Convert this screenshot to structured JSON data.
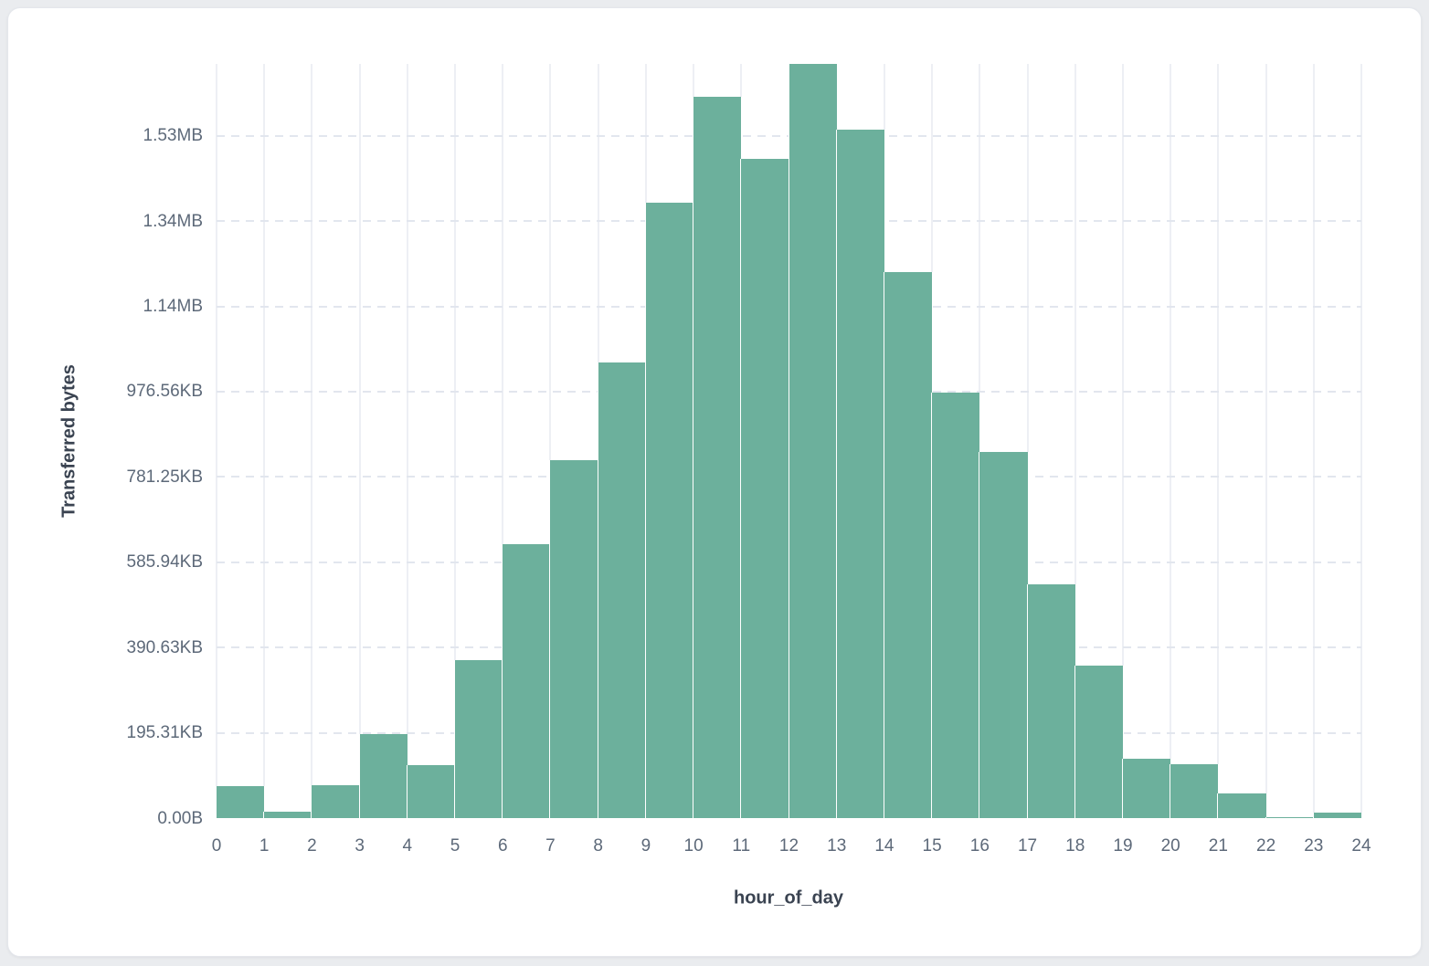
{
  "chart_data": {
    "type": "bar",
    "title": "",
    "xlabel": "hour_of_day",
    "ylabel": "Transferred bytes",
    "hours": [
      0,
      1,
      2,
      3,
      4,
      5,
      6,
      7,
      8,
      9,
      10,
      11,
      12,
      13,
      14,
      15,
      16,
      17,
      18,
      19,
      20,
      21,
      22,
      23
    ],
    "values": [
      74000,
      15000,
      78000,
      196000,
      125000,
      370000,
      642000,
      839000,
      1069000,
      1443000,
      1692000,
      1545000,
      1768000,
      1615000,
      1280000,
      998000,
      858000,
      548000,
      358000,
      140000,
      126000,
      57000,
      3000,
      13000
    ],
    "values_unit": "bytes",
    "x_ticks": [
      "0",
      "1",
      "2",
      "3",
      "4",
      "5",
      "6",
      "7",
      "8",
      "9",
      "10",
      "11",
      "12",
      "13",
      "14",
      "15",
      "16",
      "17",
      "18",
      "19",
      "20",
      "21",
      "22",
      "23",
      "24"
    ],
    "y_ticks": [
      {
        "label": "0.00B",
        "value": 0
      },
      {
        "label": "195.31KB",
        "value": 200000
      },
      {
        "label": "390.63KB",
        "value": 400000
      },
      {
        "label": "585.94KB",
        "value": 600000
      },
      {
        "label": "781.25KB",
        "value": 800000
      },
      {
        "label": "976.56KB",
        "value": 1000000
      },
      {
        "label": "1.14MB",
        "value": 1200000
      },
      {
        "label": "1.34MB",
        "value": 1400000
      },
      {
        "label": "1.53MB",
        "value": 1600000
      }
    ],
    "xlim": [
      0,
      24
    ],
    "ylim": [
      0,
      1768700
    ],
    "grid": true,
    "legend_position": "none",
    "bar_color": "#6cb09c",
    "tick_label_color": "#5d6979",
    "axis_title_color": "#3a4351"
  }
}
